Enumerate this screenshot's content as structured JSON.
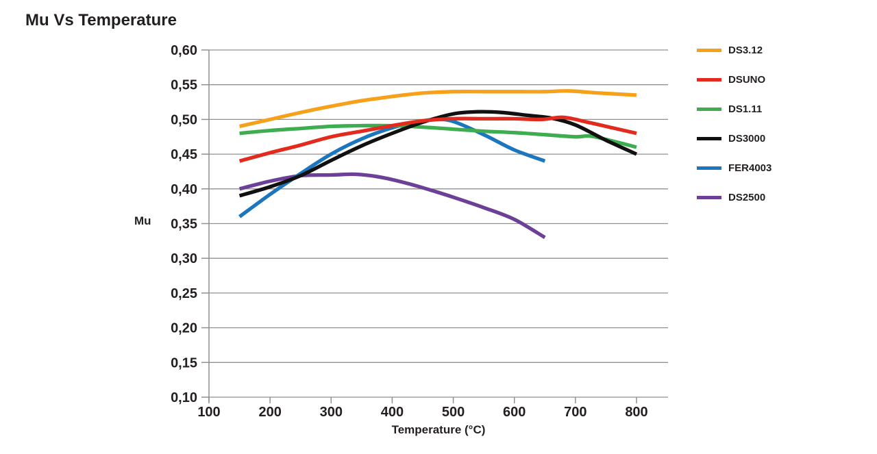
{
  "chart_data": {
    "type": "line",
    "title": "Mu Vs Temperature",
    "xlabel": "Temperature (°C)",
    "ylabel": "Mu",
    "xlim": [
      100,
      850
    ],
    "ylim": [
      0.1,
      0.6
    ],
    "grid": "horizontal",
    "legend_position": "right",
    "axis_color": "#8F8F8F",
    "text_color": "#231F20",
    "x_ticks": [
      {
        "value": 100,
        "label": "100"
      },
      {
        "value": 200,
        "label": "200"
      },
      {
        "value": 300,
        "label": "300"
      },
      {
        "value": 400,
        "label": "400"
      },
      {
        "value": 500,
        "label": "500"
      },
      {
        "value": 600,
        "label": "600"
      },
      {
        "value": 700,
        "label": "700"
      },
      {
        "value": 800,
        "label": "800"
      }
    ],
    "y_ticks": [
      {
        "value": 0.1,
        "label": "0,10"
      },
      {
        "value": 0.15,
        "label": "0,15"
      },
      {
        "value": 0.2,
        "label": "0,20"
      },
      {
        "value": 0.25,
        "label": "0,25"
      },
      {
        "value": 0.3,
        "label": "0,30"
      },
      {
        "value": 0.35,
        "label": "0,35"
      },
      {
        "value": 0.4,
        "label": "0,40"
      },
      {
        "value": 0.45,
        "label": "0,45"
      },
      {
        "value": 0.5,
        "label": "0,50"
      },
      {
        "value": 0.55,
        "label": "0,55"
      },
      {
        "value": 0.6,
        "label": "0,60"
      }
    ],
    "series": [
      {
        "name": "DS3.12",
        "color": "#F7A11B",
        "points": [
          [
            150,
            0.49
          ],
          [
            200,
            0.5
          ],
          [
            250,
            0.51
          ],
          [
            300,
            0.519
          ],
          [
            350,
            0.527
          ],
          [
            400,
            0.533
          ],
          [
            450,
            0.538
          ],
          [
            500,
            0.54
          ],
          [
            550,
            0.54
          ],
          [
            600,
            0.54
          ],
          [
            650,
            0.54
          ],
          [
            690,
            0.541
          ],
          [
            740,
            0.538
          ],
          [
            800,
            0.535
          ]
        ]
      },
      {
        "name": "DSUNO",
        "color": "#E22A1E",
        "points": [
          [
            150,
            0.44
          ],
          [
            200,
            0.452
          ],
          [
            250,
            0.463
          ],
          [
            300,
            0.475
          ],
          [
            350,
            0.483
          ],
          [
            400,
            0.491
          ],
          [
            450,
            0.498
          ],
          [
            500,
            0.501
          ],
          [
            550,
            0.501
          ],
          [
            600,
            0.501
          ],
          [
            645,
            0.5
          ],
          [
            680,
            0.503
          ],
          [
            720,
            0.496
          ],
          [
            760,
            0.488
          ],
          [
            800,
            0.48
          ]
        ]
      },
      {
        "name": "DS1.11",
        "color": "#3DAD4F",
        "points": [
          [
            150,
            0.48
          ],
          [
            200,
            0.484
          ],
          [
            250,
            0.487
          ],
          [
            300,
            0.49
          ],
          [
            350,
            0.491
          ],
          [
            400,
            0.491
          ],
          [
            450,
            0.489
          ],
          [
            500,
            0.486
          ],
          [
            550,
            0.483
          ],
          [
            600,
            0.481
          ],
          [
            650,
            0.478
          ],
          [
            700,
            0.475
          ],
          [
            725,
            0.476
          ],
          [
            760,
            0.469
          ],
          [
            800,
            0.46
          ]
        ]
      },
      {
        "name": "DS3000",
        "color": "#111111",
        "points": [
          [
            150,
            0.39
          ],
          [
            200,
            0.403
          ],
          [
            250,
            0.419
          ],
          [
            300,
            0.441
          ],
          [
            350,
            0.462
          ],
          [
            400,
            0.48
          ],
          [
            450,
            0.496
          ],
          [
            500,
            0.508
          ],
          [
            540,
            0.511
          ],
          [
            580,
            0.51
          ],
          [
            620,
            0.506
          ],
          [
            660,
            0.502
          ],
          [
            700,
            0.492
          ],
          [
            750,
            0.47
          ],
          [
            800,
            0.45
          ]
        ]
      },
      {
        "name": "FER4003",
        "color": "#1C76BD",
        "points": [
          [
            150,
            0.36
          ],
          [
            200,
            0.392
          ],
          [
            250,
            0.422
          ],
          [
            300,
            0.45
          ],
          [
            350,
            0.472
          ],
          [
            400,
            0.488
          ],
          [
            440,
            0.496
          ],
          [
            470,
            0.5
          ],
          [
            500,
            0.497
          ],
          [
            550,
            0.478
          ],
          [
            600,
            0.456
          ],
          [
            650,
            0.44
          ]
        ]
      },
      {
        "name": "DS2500",
        "color": "#6B4096",
        "points": [
          [
            150,
            0.4
          ],
          [
            200,
            0.411
          ],
          [
            250,
            0.419
          ],
          [
            300,
            0.42
          ],
          [
            340,
            0.421
          ],
          [
            380,
            0.417
          ],
          [
            420,
            0.409
          ],
          [
            460,
            0.399
          ],
          [
            500,
            0.388
          ],
          [
            550,
            0.373
          ],
          [
            600,
            0.356
          ],
          [
            650,
            0.33
          ]
        ]
      }
    ],
    "draw_order": [
      "DS2500",
      "FER4003",
      "DS1.11",
      "DS3000",
      "DSUNO",
      "DS3.12"
    ]
  }
}
